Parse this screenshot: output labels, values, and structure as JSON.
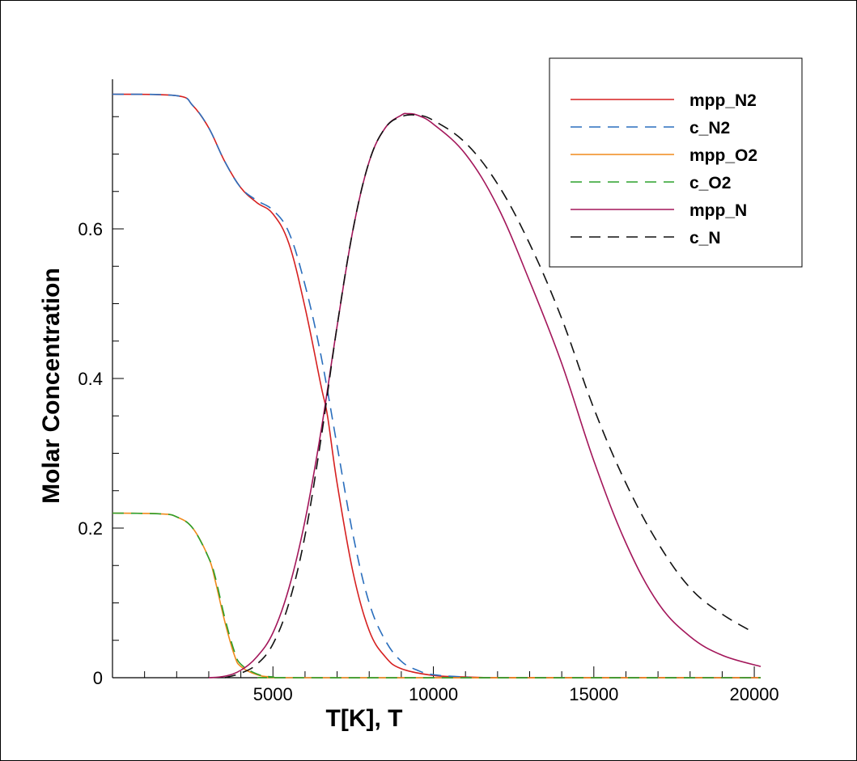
{
  "chart_data": {
    "type": "line",
    "title": "",
    "xlabel": "T[K], T",
    "ylabel": "Molar Concentration",
    "xlim": [
      0,
      20200
    ],
    "ylim": [
      0,
      0.8
    ],
    "x_ticks": [
      5000,
      10000,
      15000,
      20000
    ],
    "x_tick_labels": [
      "5000",
      "10000",
      "15000",
      "20000"
    ],
    "y_ticks": [
      0,
      0.2,
      0.4,
      0.6
    ],
    "y_tick_labels": [
      "0",
      "0.2",
      "0.4",
      "0.6"
    ],
    "grid": false,
    "legend_position": "top-right",
    "series": [
      {
        "name": "mpp_N2",
        "color": "#d62020",
        "dash": "solid",
        "x": [
          0,
          2000,
          2500,
          3000,
          3500,
          4000,
          4500,
          5000,
          5500,
          6000,
          6500,
          6700,
          7000,
          7500,
          8000,
          8500,
          9000,
          10000,
          11000,
          12000,
          14000,
          20200
        ],
        "y": [
          0.78,
          0.778,
          0.765,
          0.735,
          0.69,
          0.655,
          0.635,
          0.62,
          0.58,
          0.495,
          0.39,
          0.35,
          0.26,
          0.14,
          0.063,
          0.028,
          0.012,
          0.003,
          0.001,
          0.0,
          0.0,
          0.0
        ]
      },
      {
        "name": "c_N2",
        "color": "#2a6ebd",
        "dash": "dashed",
        "x": [
          0,
          2000,
          2500,
          3000,
          3500,
          4000,
          4500,
          5000,
          5500,
          6000,
          6500,
          7000,
          7500,
          8000,
          8500,
          9000,
          9500,
          10000,
          11000,
          12000,
          20200
        ],
        "y": [
          0.78,
          0.778,
          0.765,
          0.735,
          0.69,
          0.655,
          0.638,
          0.625,
          0.595,
          0.525,
          0.43,
          0.31,
          0.19,
          0.1,
          0.05,
          0.022,
          0.01,
          0.004,
          0.001,
          0.0,
          0.0
        ]
      },
      {
        "name": "mpp_O2",
        "color": "#f08a1c",
        "dash": "solid",
        "x": [
          0,
          1500,
          2000,
          2500,
          3000,
          3200,
          3500,
          3800,
          4000,
          4500,
          5000,
          6000,
          20200
        ],
        "y": [
          0.22,
          0.219,
          0.215,
          0.2,
          0.16,
          0.13,
          0.075,
          0.03,
          0.015,
          0.004,
          0.001,
          0.0,
          0.0
        ]
      },
      {
        "name": "c_O2",
        "color": "#2ca02c",
        "dash": "dashed",
        "x": [
          0,
          1500,
          2000,
          2500,
          3000,
          3200,
          3500,
          3800,
          4000,
          4500,
          5000,
          6000,
          20200
        ],
        "y": [
          0.22,
          0.219,
          0.215,
          0.2,
          0.16,
          0.135,
          0.08,
          0.035,
          0.018,
          0.005,
          0.001,
          0.0,
          0.0
        ]
      },
      {
        "name": "mpp_N",
        "color": "#a3165a",
        "dash": "solid",
        "x": [
          3000,
          3500,
          4000,
          4500,
          5000,
          5500,
          6000,
          6500,
          7000,
          7500,
          8000,
          8500,
          9000,
          9200,
          9500,
          10000,
          11000,
          12000,
          13000,
          14000,
          15000,
          16000,
          17000,
          18000,
          19000,
          20200
        ],
        "y": [
          0.0,
          0.002,
          0.01,
          0.028,
          0.06,
          0.12,
          0.21,
          0.33,
          0.47,
          0.6,
          0.69,
          0.735,
          0.752,
          0.754,
          0.752,
          0.74,
          0.7,
          0.63,
          0.53,
          0.42,
          0.29,
          0.18,
          0.1,
          0.055,
          0.03,
          0.015
        ]
      },
      {
        "name": "c_N",
        "color": "#111111",
        "dash": "dashed",
        "x": [
          3500,
          4000,
          4500,
          5000,
          5500,
          6000,
          6500,
          7000,
          7500,
          8000,
          8500,
          9000,
          9500,
          10000,
          11000,
          12000,
          13000,
          14000,
          15000,
          16000,
          17000,
          18000,
          19000,
          20000
        ],
        "y": [
          0.0,
          0.006,
          0.018,
          0.045,
          0.1,
          0.19,
          0.32,
          0.47,
          0.6,
          0.69,
          0.735,
          0.75,
          0.752,
          0.745,
          0.715,
          0.66,
          0.58,
          0.48,
          0.36,
          0.26,
          0.18,
          0.12,
          0.085,
          0.06
        ]
      }
    ]
  }
}
